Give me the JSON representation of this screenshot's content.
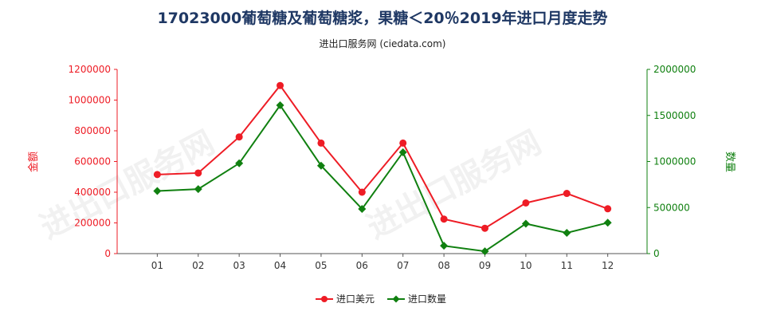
{
  "chart_data": {
    "type": "line",
    "title": "17023000葡萄糖及葡萄糖浆，果糖＜20％2019年进口月度走势",
    "subtitle": "进出口服务网 (ciedata.com)",
    "categories": [
      "01",
      "02",
      "03",
      "04",
      "05",
      "06",
      "07",
      "08",
      "09",
      "10",
      "11",
      "12"
    ],
    "series": [
      {
        "name": "进口美元",
        "axis": "left",
        "color": "#ee1c25",
        "values": [
          515000,
          525000,
          760000,
          1095000,
          720000,
          400000,
          720000,
          225000,
          165000,
          330000,
          392000,
          292000
        ]
      },
      {
        "name": "进口数量",
        "axis": "right",
        "color": "#108010",
        "values": [
          680000,
          700000,
          980000,
          1610000,
          955000,
          485000,
          1100000,
          85000,
          25000,
          325000,
          225000,
          335000
        ]
      }
    ],
    "y_left": {
      "label": "金额",
      "min": 0,
      "max": 1200000,
      "ticks": [
        "0",
        "200000",
        "400000",
        "600000",
        "800000",
        "1000000",
        "1200000"
      ]
    },
    "y_right": {
      "label": "数量",
      "min": 0,
      "max": 2000000,
      "ticks": [
        "0",
        "500000",
        "1000000",
        "1500000",
        "2000000"
      ]
    },
    "legend_position": "bottom-center",
    "grid": false
  },
  "watermark": "进出口服务网"
}
